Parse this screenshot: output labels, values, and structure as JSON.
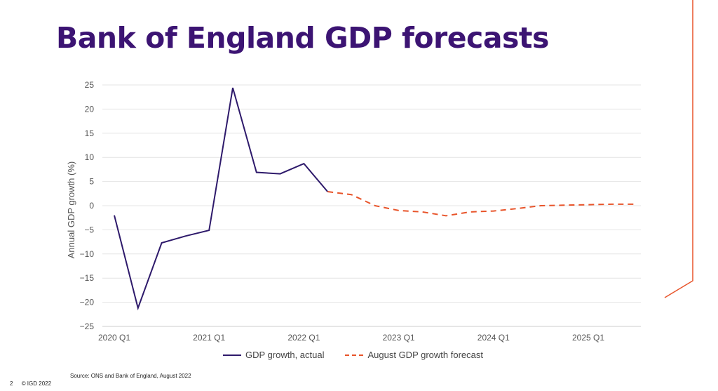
{
  "page": {
    "title": "Bank of England GDP forecasts",
    "source": "Source: ONS and Bank of England, August 2022",
    "page_number": "2",
    "copyright": "© IGD 2022"
  },
  "colors": {
    "title": "#3c1473",
    "actual": "#2e1a6b",
    "forecast": "#e8542a",
    "grid": "#e4e4e4",
    "axis_text": "#555555",
    "accent": "#e8542a"
  },
  "chart_data": {
    "type": "line",
    "ylabel": "Annual GDP growth (%)",
    "xlabel": "",
    "ylim": [
      -25,
      25
    ],
    "yticks": [
      25,
      20,
      15,
      10,
      5,
      0,
      -5,
      -10,
      -15,
      -20,
      -25
    ],
    "x_categories": [
      "2020 Q1",
      "2020 Q2",
      "2020 Q3",
      "2020 Q4",
      "2021 Q1",
      "2021 Q2",
      "2021 Q3",
      "2021 Q4",
      "2022 Q1",
      "2022 Q2",
      "2022 Q3",
      "2022 Q4",
      "2023 Q1",
      "2023 Q2",
      "2023 Q3",
      "2023 Q4",
      "2024 Q1",
      "2024 Q2",
      "2024 Q3",
      "2024 Q4",
      "2025 Q1",
      "2025 Q2",
      "2025 Q3"
    ],
    "xtick_labels": [
      "2020 Q1",
      "2021 Q1",
      "2022 Q1",
      "2023 Q1",
      "2024 Q1",
      "2025 Q1"
    ],
    "series": [
      {
        "name": "GDP growth, actual",
        "style": "solid",
        "color": "#2e1a6b",
        "points": [
          [
            "2020 Q1",
            -2.0
          ],
          [
            "2020 Q2",
            -21.2
          ],
          [
            "2020 Q3",
            -7.7
          ],
          [
            "2020 Q4",
            -6.3
          ],
          [
            "2021 Q1",
            -5.1
          ],
          [
            "2021 Q2",
            24.4
          ],
          [
            "2021 Q3",
            6.9
          ],
          [
            "2021 Q4",
            6.6
          ],
          [
            "2022 Q1",
            8.7
          ],
          [
            "2022 Q2",
            2.9
          ]
        ]
      },
      {
        "name": "August GDP growth forecast",
        "style": "dashed",
        "color": "#e8542a",
        "points": [
          [
            "2022 Q2",
            2.9
          ],
          [
            "2022 Q3",
            2.3
          ],
          [
            "2022 Q4",
            0.0
          ],
          [
            "2023 Q1",
            -1.0
          ],
          [
            "2023 Q2",
            -1.3
          ],
          [
            "2023 Q3",
            -2.1
          ],
          [
            "2023 Q4",
            -1.3
          ],
          [
            "2024 Q1",
            -1.1
          ],
          [
            "2024 Q2",
            -0.6
          ],
          [
            "2024 Q3",
            0.0
          ],
          [
            "2024 Q4",
            0.1
          ],
          [
            "2025 Q1",
            0.2
          ],
          [
            "2025 Q2",
            0.3
          ],
          [
            "2025 Q3",
            0.3
          ]
        ]
      }
    ],
    "grid": true,
    "legend_position": "bottom"
  }
}
